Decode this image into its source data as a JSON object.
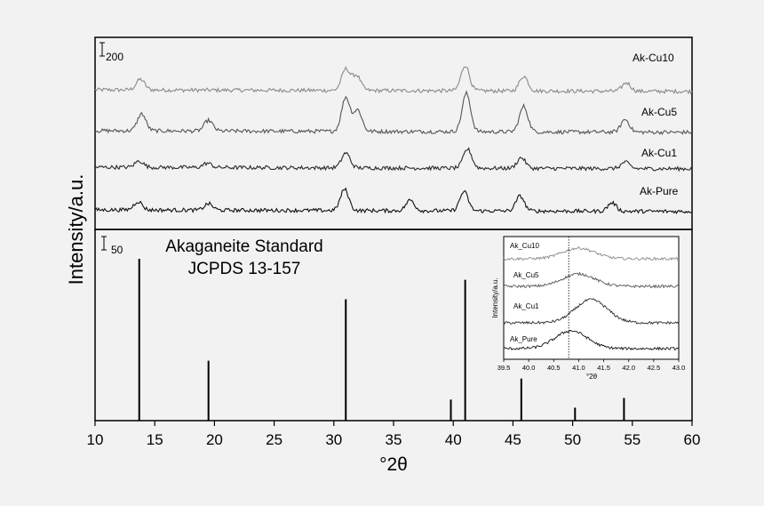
{
  "chart_data": [
    {
      "type": "line",
      "panel": "top",
      "title": "",
      "xlabel": "°2θ",
      "ylabel": "Intensity/a.u.",
      "xlim": [
        10,
        60
      ],
      "xticks": [
        "10",
        "15",
        "20",
        "25",
        "30",
        "35",
        "40",
        "45",
        "50",
        "55",
        "60"
      ],
      "scale_bar_label": "200",
      "grid": false,
      "series": [
        {
          "name": "Ak-Cu10",
          "color": "#8a8a8a",
          "peaks": [
            [
              13.8,
              0.5
            ],
            [
              31.0,
              1.0
            ],
            [
              31.9,
              0.7
            ],
            [
              41.0,
              1.2
            ],
            [
              45.9,
              0.7
            ],
            [
              54.5,
              0.4
            ]
          ]
        },
        {
          "name": "Ak-Cu5",
          "color": "#555555",
          "peaks": [
            [
              13.9,
              0.8
            ],
            [
              19.5,
              0.5
            ],
            [
              31.0,
              1.6
            ],
            [
              32.0,
              1.0
            ],
            [
              41.1,
              1.8
            ],
            [
              45.9,
              1.2
            ],
            [
              54.4,
              0.6
            ]
          ]
        },
        {
          "name": "Ak-Cu1",
          "color": "#2a2a2a",
          "peaks": [
            [
              13.7,
              0.3
            ],
            [
              19.4,
              0.2
            ],
            [
              31.0,
              0.7
            ],
            [
              41.2,
              0.9
            ],
            [
              45.7,
              0.5
            ],
            [
              54.4,
              0.3
            ]
          ]
        },
        {
          "name": "Ak-Pure",
          "color": "#111111",
          "peaks": [
            [
              13.6,
              0.4
            ],
            [
              19.5,
              0.3
            ],
            [
              30.9,
              1.0
            ],
            [
              36.4,
              0.5
            ],
            [
              40.9,
              0.9
            ],
            [
              45.6,
              0.7
            ],
            [
              53.3,
              0.4
            ]
          ]
        }
      ]
    },
    {
      "type": "bar",
      "panel": "bottom",
      "title": "Akaganeite Standard\nJCPDS 13-157",
      "title_lines": [
        "Akaganeite Standard",
        "JCPDS 13-157"
      ],
      "scale_bar_label": "50",
      "x": [
        13.7,
        19.5,
        31.0,
        39.8,
        41.0,
        45.7,
        50.2,
        54.3
      ],
      "values": [
        100,
        37,
        75,
        13,
        87,
        26,
        8,
        14
      ]
    },
    {
      "type": "line",
      "panel": "inset",
      "xlabel": "°2θ",
      "ylabel": "Intensity/a.u.",
      "xlim": [
        39.5,
        43.0
      ],
      "xticks": [
        "39.5",
        "40.0",
        "40.5",
        "41.0",
        "41.5",
        "42.0",
        "42.5",
        "43.0"
      ],
      "reference_line_x": 40.8,
      "series": [
        {
          "name": "Ak_Cu10",
          "color": "#8a8a8a",
          "peak_center": 41.0
        },
        {
          "name": "Ak_Cu5",
          "color": "#555555",
          "peak_center": 41.0
        },
        {
          "name": "Ak_Cu1",
          "color": "#2a2a2a",
          "peak_center": 41.25
        },
        {
          "name": "Ak_Pure",
          "color": "#111111",
          "peak_center": 40.85
        }
      ]
    }
  ]
}
